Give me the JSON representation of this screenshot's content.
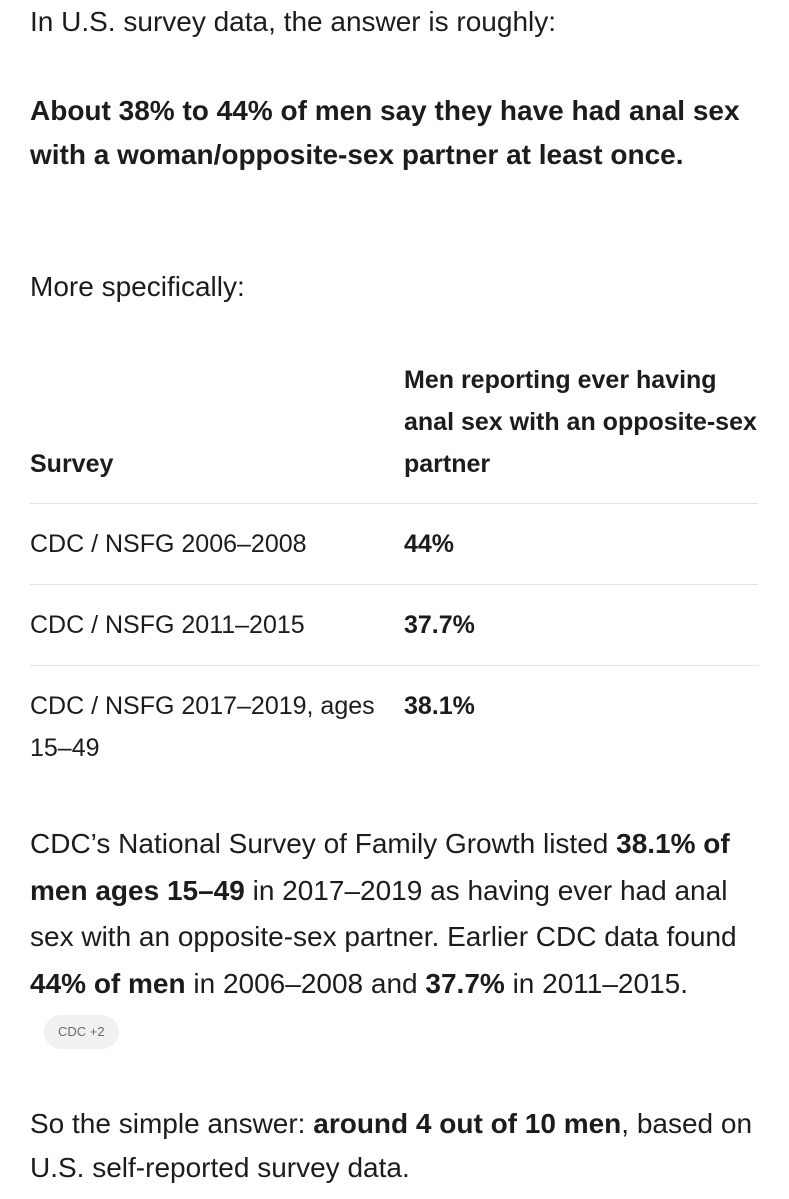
{
  "intro": "In U.S. survey data, the answer is roughly:",
  "summary": "About 38% to 44% of men say they have had anal sex with a woman/opposite-sex partner at least once.",
  "lead": "More specifically:",
  "table": {
    "header": [
      "Survey",
      "Men reporting ever having anal sex with an opposite-sex partner"
    ],
    "rows": [
      [
        "CDC / NSFG 2006–2008",
        "44%"
      ],
      [
        "CDC / NSFG 2011–2015",
        "37.7%"
      ],
      [
        "CDC / NSFG 2017–2019, ages 15–49",
        "38.1%"
      ]
    ]
  },
  "detail": [
    {
      "text": "CDC’s National Survey of Family Growth listed ",
      "bold": false
    },
    {
      "text": "38.1% of men ages 15–49",
      "bold": true
    },
    {
      "text": " in 2017–2019 as having ever had anal sex with an opposite-sex partner. Earlier CDC data found ",
      "bold": false
    },
    {
      "text": "44% of men",
      "bold": true
    },
    {
      "text": " in 2006–2008 and ",
      "bold": false
    },
    {
      "text": "37.7%",
      "bold": true
    },
    {
      "text": " in 2011–2015.",
      "bold": false
    }
  ],
  "citation": "CDC +2",
  "conclusion": [
    {
      "text": "So the simple answer: ",
      "bold": false
    },
    {
      "text": "around 4 out of 10 men",
      "bold": true
    },
    {
      "text": ", based on U.S. self-reported survey data.",
      "bold": false
    }
  ]
}
